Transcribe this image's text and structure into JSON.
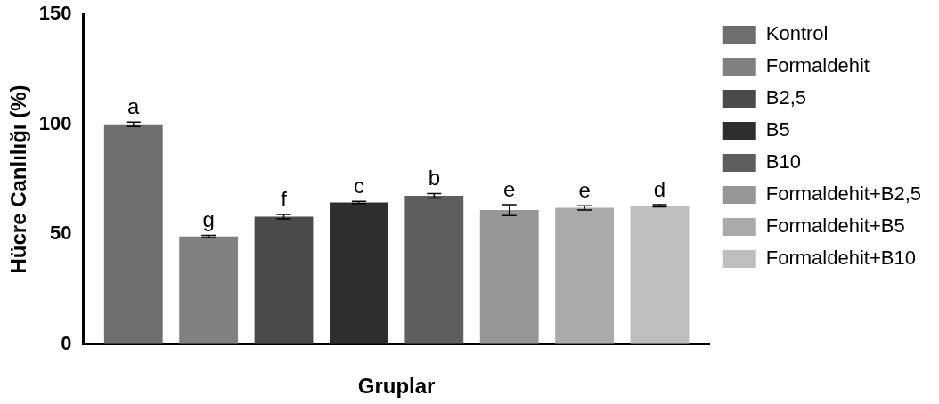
{
  "chart_data": {
    "type": "bar",
    "xlabel": "Gruplar",
    "ylabel": "Hücre Canlılığı (%)",
    "categories": [
      null
    ],
    "ylim": [
      0,
      150
    ],
    "yticks": [
      0,
      50,
      100,
      150
    ],
    "grid": false,
    "legend": "right",
    "series": [
      {
        "name": "Kontrol",
        "color": "#6e6e6e",
        "values": [
          100
        ],
        "errors": [
          1
        ]
      },
      {
        "name": "Formaldehit",
        "color": "#808080",
        "values": [
          49
        ],
        "errors": [
          0.5
        ]
      },
      {
        "name": "B2,5",
        "color": "#4a4a4a",
        "values": [
          58
        ],
        "errors": [
          1
        ]
      },
      {
        "name": "B5",
        "color": "#2e2e2e",
        "values": [
          64.5
        ],
        "errors": [
          0.5
        ]
      },
      {
        "name": "B10",
        "color": "#5e5e5e",
        "values": [
          67.5
        ],
        "errors": [
          1
        ]
      },
      {
        "name": "Formaldehit+B2,5",
        "color": "#969696",
        "values": [
          61
        ],
        "errors": [
          2.5
        ]
      },
      {
        "name": "Formaldehit+B5",
        "color": "#aaaaaa",
        "values": [
          62
        ],
        "errors": [
          1
        ]
      },
      {
        "name": "Formaldehit+B10",
        "color": "#bebebe",
        "values": [
          63
        ],
        "errors": [
          0.5
        ]
      }
    ],
    "annotations": [
      "a",
      "g",
      "f",
      "c",
      "b",
      "e",
      "e",
      "d"
    ]
  }
}
